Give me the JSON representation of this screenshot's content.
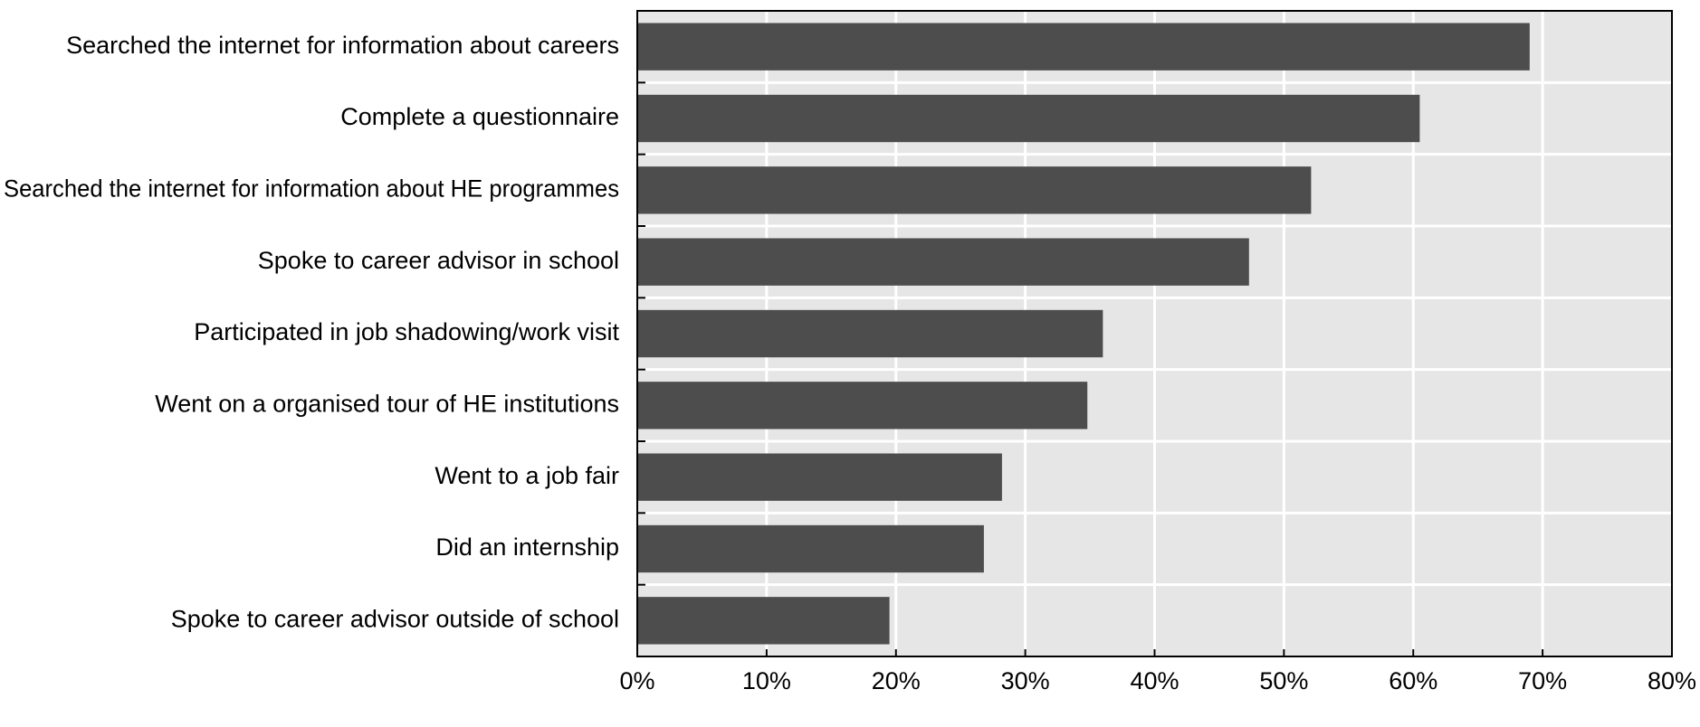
{
  "chart_data": {
    "type": "bar",
    "orientation": "horizontal",
    "categories": [
      "Searched the internet for information about careers",
      "Complete a questionnaire",
      "Searched the internet for information about HE programmes",
      "Spoke to career advisor in school",
      "Participated in job shadowing/work visit",
      "Went on a organised tour of HE institutions",
      "Went to a job fair",
      "Did an internship",
      "Spoke to career advisor outside of school"
    ],
    "values": [
      69.0,
      60.5,
      52.1,
      47.3,
      36.0,
      34.8,
      28.2,
      26.8,
      19.5
    ],
    "xlim": [
      0,
      80
    ],
    "x_ticks": [
      0,
      10,
      20,
      30,
      40,
      50,
      60,
      70,
      80
    ],
    "x_tick_labels": [
      "0%",
      "10%",
      "20%",
      "30%",
      "40%",
      "50%",
      "60%",
      "70%",
      "80%"
    ],
    "title": "",
    "xlabel": "",
    "ylabel": "",
    "grid": true,
    "legend": "none",
    "colors": {
      "bar": "#4d4d4d",
      "plot_background": "#e6e6e6",
      "gridline": "#ffffff",
      "axis": "#000000"
    }
  }
}
